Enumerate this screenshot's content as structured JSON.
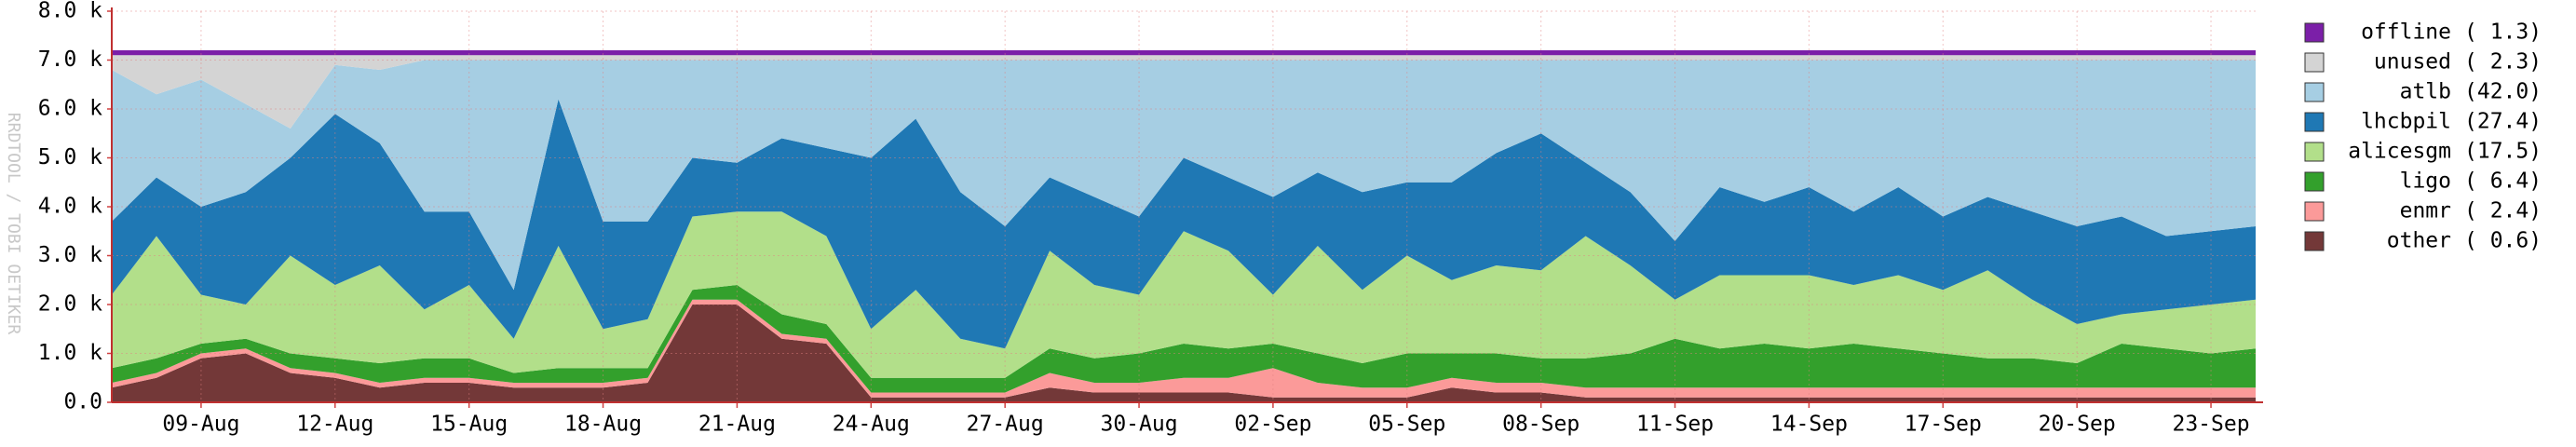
{
  "chart_data": {
    "type": "stacked_area",
    "watermark": "RRDTOOL / TOBI OETIKER",
    "categories": [
      null,
      null,
      "09-Aug",
      null,
      null,
      "12-Aug",
      null,
      null,
      "15-Aug",
      null,
      null,
      "18-Aug",
      null,
      null,
      "21-Aug",
      null,
      null,
      "24-Aug",
      null,
      null,
      "27-Aug",
      null,
      null,
      "30-Aug",
      null,
      null,
      "02-Sep",
      null,
      null,
      "05-Sep",
      null,
      null,
      "08-Sep",
      null,
      null,
      "11-Sep",
      null,
      null,
      "14-Sep",
      null,
      null,
      "17-Sep",
      null,
      null,
      "20-Sep",
      null,
      null,
      "23-Sep",
      null
    ],
    "ylim": [
      0,
      8000
    ],
    "yticks": [
      {
        "value": 0,
        "label": "0.0"
      },
      {
        "value": 1000,
        "label": "1.0 k"
      },
      {
        "value": 2000,
        "label": "2.0 k"
      },
      {
        "value": 3000,
        "label": "3.0 k"
      },
      {
        "value": 4000,
        "label": "4.0 k"
      },
      {
        "value": 5000,
        "label": "5.0 k"
      },
      {
        "value": 6000,
        "label": "6.0 k"
      },
      {
        "value": 7000,
        "label": "7.0 k"
      },
      {
        "value": 8000,
        "label": "8.0 k"
      }
    ],
    "grid": true,
    "legend": "right",
    "series": [
      {
        "name": "offline",
        "legend_value": "( 1.3)",
        "color": "#7b1fa8",
        "values": [
          100,
          100,
          100,
          100,
          100,
          100,
          100,
          100,
          100,
          100,
          100,
          100,
          100,
          100,
          100,
          100,
          100,
          100,
          100,
          100,
          100,
          100,
          100,
          100,
          100,
          100,
          100,
          100,
          100,
          100,
          100,
          100,
          100,
          100,
          100,
          100,
          100,
          100,
          100,
          100,
          100,
          100,
          100,
          100,
          100,
          100,
          100,
          100,
          100
        ]
      },
      {
        "name": "unused",
        "legend_value": "( 2.3)",
        "color": "#d4d4d4",
        "values": [
          300,
          800,
          500,
          1000,
          1500,
          200,
          300,
          100,
          100,
          100,
          100,
          100,
          100,
          100,
          100,
          100,
          100,
          100,
          100,
          100,
          100,
          100,
          100,
          100,
          100,
          100,
          100,
          100,
          100,
          100,
          100,
          100,
          100,
          100,
          100,
          100,
          100,
          100,
          100,
          100,
          100,
          100,
          100,
          100,
          100,
          100,
          100,
          100,
          100
        ]
      },
      {
        "name": "atlb",
        "legend_value": "(42.0)",
        "color": "#a6cee3",
        "values": [
          3100,
          1700,
          2600,
          1800,
          600,
          1000,
          1500,
          3100,
          3100,
          4700,
          800,
          3300,
          3300,
          2000,
          2100,
          1600,
          1800,
          2000,
          1200,
          2700,
          3400,
          2400,
          2800,
          3200,
          2000,
          2400,
          2800,
          2300,
          2700,
          2500,
          2500,
          1900,
          1500,
          2100,
          2700,
          3700,
          2600,
          2900,
          2600,
          3100,
          2600,
          3200,
          2800,
          3100,
          3400,
          3200,
          3600,
          3500,
          3400
        ]
      },
      {
        "name": "lhcbpil",
        "legend_value": "(27.4)",
        "color": "#1f78b4",
        "values": [
          1500,
          1200,
          1800,
          2300,
          2000,
          3500,
          2500,
          2000,
          1500,
          1000,
          3000,
          2200,
          2000,
          1200,
          1000,
          1500,
          1800,
          3500,
          3500,
          3000,
          2500,
          1500,
          1800,
          1600,
          1500,
          1500,
          2000,
          1500,
          2000,
          1500,
          2000,
          2300,
          2800,
          1500,
          1500,
          1200,
          1800,
          1500,
          1800,
          1500,
          1800,
          1500,
          1500,
          1800,
          2000,
          2000,
          1500,
          1500,
          1500
        ]
      },
      {
        "name": "alicesgm",
        "legend_value": "(17.5)",
        "color": "#b2df8a",
        "values": [
          1500,
          2500,
          1000,
          700,
          2000,
          1500,
          2000,
          1000,
          1500,
          700,
          2500,
          800,
          1000,
          1500,
          1500,
          2100,
          1800,
          1000,
          1800,
          800,
          600,
          2000,
          1500,
          1200,
          2300,
          2000,
          1000,
          2200,
          1500,
          2000,
          1500,
          1800,
          1800,
          2500,
          1800,
          800,
          1500,
          1400,
          1500,
          1200,
          1500,
          1300,
          1800,
          1200,
          800,
          600,
          800,
          1000,
          1000
        ]
      },
      {
        "name": "ligo",
        "legend_value": "( 6.4)",
        "color": "#33a02c",
        "values": [
          300,
          300,
          200,
          200,
          300,
          300,
          400,
          400,
          400,
          200,
          300,
          300,
          200,
          200,
          300,
          400,
          300,
          300,
          300,
          300,
          300,
          500,
          500,
          600,
          700,
          600,
          500,
          600,
          500,
          700,
          500,
          600,
          500,
          600,
          700,
          1000,
          800,
          900,
          800,
          900,
          800,
          700,
          600,
          600,
          500,
          900,
          800,
          700,
          800
        ]
      },
      {
        "name": "enmr",
        "legend_value": "( 2.4)",
        "color": "#fb9a99",
        "values": [
          100,
          100,
          100,
          100,
          100,
          100,
          100,
          100,
          100,
          100,
          100,
          100,
          100,
          100,
          100,
          100,
          100,
          100,
          100,
          100,
          100,
          300,
          200,
          200,
          300,
          300,
          600,
          300,
          200,
          200,
          200,
          200,
          200,
          200,
          200,
          200,
          200,
          200,
          200,
          200,
          200,
          200,
          200,
          200,
          200,
          200,
          200,
          200,
          200
        ]
      },
      {
        "name": "other",
        "legend_value": "( 0.6)",
        "color": "#733838",
        "values": [
          300,
          500,
          900,
          1000,
          600,
          500,
          300,
          400,
          400,
          300,
          300,
          300,
          400,
          2000,
          2000,
          1300,
          1200,
          100,
          100,
          100,
          100,
          300,
          200,
          200,
          200,
          200,
          100,
          100,
          100,
          100,
          300,
          200,
          200,
          100,
          100,
          100,
          100,
          100,
          100,
          100,
          100,
          100,
          100,
          100,
          100,
          100,
          100,
          100,
          100
        ]
      }
    ]
  }
}
